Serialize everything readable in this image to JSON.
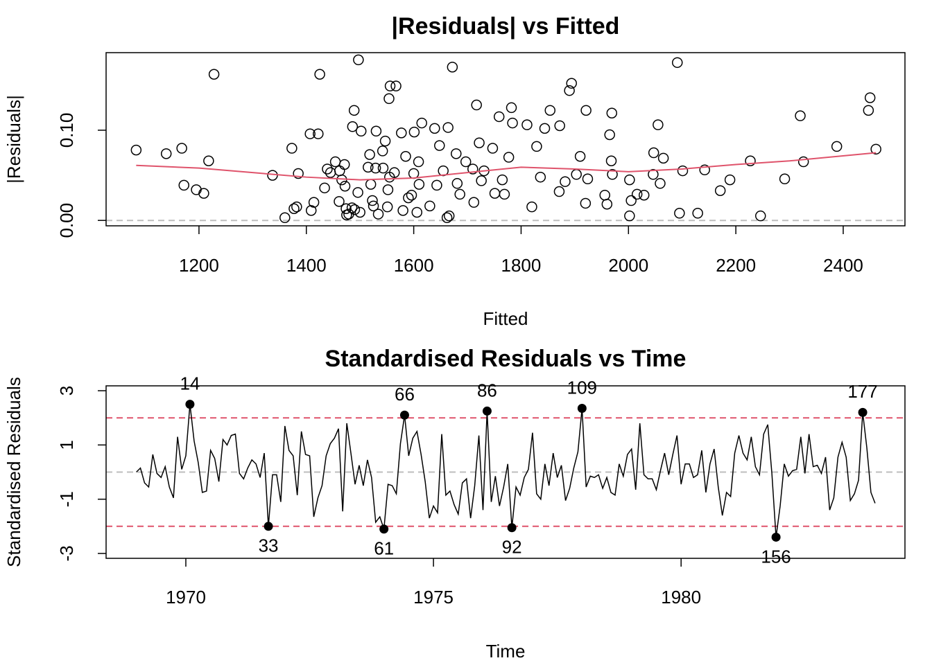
{
  "chart_data": [
    {
      "type": "scatter",
      "title": "|Residuals| vs Fitted",
      "x_label": "Fitted",
      "y_label": "|Residuals|",
      "xlim": [
        1027,
        2515
      ],
      "ylim": [
        -0.006,
        0.186
      ],
      "xticks": [
        1200,
        1400,
        1600,
        1800,
        2000,
        2200,
        2400
      ],
      "yticks": [
        {
          "value": 0,
          "label": "0.00"
        },
        {
          "value": 0.1,
          "label": "0.10"
        }
      ],
      "color": "#000000",
      "reference_lines": [
        {
          "value": 0,
          "color": "#bebebe"
        }
      ],
      "x": [
        1083,
        1139,
        1168,
        1218,
        1228,
        1172,
        1195,
        1209,
        1337,
        1360,
        1377,
        1382,
        1385,
        1373,
        1407,
        1422,
        1425,
        1409,
        1414,
        1434,
        1439,
        1445,
        1454,
        1461,
        1462,
        1466,
        1471,
        1472,
        1474,
        1475,
        1479,
        1485,
        1490,
        1489,
        1486,
        1497,
        1496,
        1500,
        1502,
        1515,
        1518,
        1520,
        1523,
        1525,
        1529,
        1530,
        1534,
        1542,
        1543,
        1547,
        1551,
        1552,
        1554,
        1555,
        1556,
        1564,
        1567,
        1577,
        1580,
        1585,
        1590,
        1596,
        1600,
        1601,
        1606,
        1610,
        1609,
        1615,
        1630,
        1639,
        1643,
        1648,
        1655,
        1662,
        1664,
        1666,
        1672,
        1679,
        1681,
        1686,
        1697,
        1710,
        1712,
        1717,
        1722,
        1726,
        1731,
        1747,
        1751,
        1759,
        1765,
        1769,
        1777,
        1782,
        1784,
        1811,
        1820,
        1829,
        1836,
        1844,
        1854,
        1871,
        1872,
        1882,
        1890,
        1894,
        1903,
        1910,
        1921,
        1924,
        1920,
        1956,
        1960,
        1965,
        1968,
        1969,
        1970,
        2002,
        2005,
        2002,
        2016,
        2029,
        2047,
        2046,
        2055,
        2059,
        2065,
        2091,
        2095,
        2101,
        2129,
        2142,
        2171,
        2189,
        2227,
        2246,
        2291,
        2320,
        2326,
        2388,
        2447,
        2450,
        2461
      ],
      "values": [
        0.078,
        0.074,
        0.08,
        0.066,
        0.162,
        0.039,
        0.034,
        0.03,
        0.05,
        0.003,
        0.013,
        0.015,
        0.052,
        0.08,
        0.096,
        0.096,
        0.162,
        0.011,
        0.02,
        0.036,
        0.057,
        0.053,
        0.065,
        0.021,
        0.055,
        0.045,
        0.062,
        0.038,
        0.013,
        0.006,
        0.007,
        0.014,
        0.012,
        0.122,
        0.104,
        0.178,
        0.031,
        0.009,
        0.099,
        0.059,
        0.073,
        0.04,
        0.022,
        0.016,
        0.058,
        0.099,
        0.007,
        0.077,
        0.058,
        0.088,
        0.015,
        0.034,
        0.135,
        0.048,
        0.149,
        0.053,
        0.149,
        0.097,
        0.011,
        0.071,
        0.025,
        0.028,
        0.052,
        0.098,
        0.009,
        0.04,
        0.065,
        0.108,
        0.016,
        0.102,
        0.039,
        0.083,
        0.055,
        0.003,
        0.103,
        0.005,
        0.17,
        0.074,
        0.041,
        0.029,
        0.065,
        0.057,
        0.02,
        0.128,
        0.086,
        0.044,
        0.055,
        0.08,
        0.03,
        0.115,
        0.045,
        0.029,
        0.07,
        0.125,
        0.108,
        0.106,
        0.015,
        0.082,
        0.048,
        0.102,
        0.122,
        0.032,
        0.105,
        0.043,
        0.144,
        0.152,
        0.051,
        0.071,
        0.122,
        0.046,
        0.019,
        0.028,
        0.018,
        0.095,
        0.066,
        0.119,
        0.051,
        0.045,
        0.022,
        0.005,
        0.029,
        0.028,
        0.075,
        0.051,
        0.106,
        0.041,
        0.069,
        0.175,
        0.008,
        0.055,
        0.008,
        0.056,
        0.033,
        0.045,
        0.066,
        0.005,
        0.046,
        0.116,
        0.065,
        0.082,
        0.122,
        0.136,
        0.079
      ],
      "fit_line": {
        "color": "#df536b",
        "x": [
          1083,
          1200,
          1300,
          1400,
          1500,
          1600,
          1700,
          1800,
          1900,
          2000,
          2100,
          2200,
          2300,
          2461
        ],
        "y": [
          0.061,
          0.058,
          0.053,
          0.048,
          0.045,
          0.047,
          0.053,
          0.059,
          0.057,
          0.054,
          0.057,
          0.062,
          0.066,
          0.075
        ]
      }
    },
    {
      "type": "line",
      "title": "Standardised Residuals vs Time",
      "x_label": "Time",
      "y_label": "Standardised Residuals",
      "xlim": [
        1968.39,
        1984.52
      ],
      "ylim": [
        -3.18,
        3.18
      ],
      "xticks": [
        1970,
        1975,
        1980
      ],
      "yticks": [
        -3,
        -1,
        1,
        3
      ],
      "color": "#000000",
      "reference_lines": [
        {
          "value": -2,
          "color": "#df536b"
        },
        {
          "value": 0,
          "color": "#bebebe"
        },
        {
          "value": 2,
          "color": "#df536b"
        }
      ],
      "x": [
        1969,
        1969.083,
        1969.167,
        1969.25,
        1969.333,
        1969.417,
        1969.5,
        1969.583,
        1969.667,
        1969.75,
        1969.833,
        1969.917,
        1970,
        1970.083,
        1970.167,
        1970.25,
        1970.333,
        1970.417,
        1970.5,
        1970.583,
        1970.667,
        1970.75,
        1970.833,
        1970.917,
        1971,
        1971.083,
        1971.167,
        1971.25,
        1971.333,
        1971.417,
        1971.5,
        1971.583,
        1971.667,
        1971.75,
        1971.833,
        1971.917,
        1972,
        1972.083,
        1972.167,
        1972.25,
        1972.333,
        1972.417,
        1972.5,
        1972.583,
        1972.667,
        1972.75,
        1972.833,
        1972.917,
        1973,
        1973.083,
        1973.167,
        1973.25,
        1973.333,
        1973.417,
        1973.5,
        1973.583,
        1973.667,
        1973.75,
        1973.833,
        1973.917,
        1974,
        1974.083,
        1974.167,
        1974.25,
        1974.333,
        1974.417,
        1974.5,
        1974.583,
        1974.667,
        1974.75,
        1974.833,
        1974.917,
        1975,
        1975.083,
        1975.167,
        1975.25,
        1975.333,
        1975.417,
        1975.5,
        1975.583,
        1975.667,
        1975.75,
        1975.833,
        1975.917,
        1976,
        1976.083,
        1976.167,
        1976.25,
        1976.333,
        1976.417,
        1976.5,
        1976.583,
        1976.667,
        1976.75,
        1976.833,
        1976.917,
        1977,
        1977.083,
        1977.167,
        1977.25,
        1977.333,
        1977.417,
        1977.5,
        1977.583,
        1977.667,
        1977.75,
        1977.833,
        1977.917,
        1978,
        1978.083,
        1978.167,
        1978.25,
        1978.333,
        1978.417,
        1978.5,
        1978.583,
        1978.667,
        1978.75,
        1978.833,
        1978.917,
        1979,
        1979.083,
        1979.167,
        1979.25,
        1979.333,
        1979.417,
        1979.5,
        1979.583,
        1979.667,
        1979.75,
        1979.833,
        1979.917,
        1980,
        1980.083,
        1980.167,
        1980.25,
        1980.333,
        1980.417,
        1980.5,
        1980.583,
        1980.667,
        1980.75,
        1980.833,
        1980.917,
        1981,
        1981.083,
        1981.167,
        1981.25,
        1981.333,
        1981.417,
        1981.5,
        1981.583,
        1981.667,
        1981.75,
        1981.833,
        1981.917,
        1982,
        1982.083,
        1982.167,
        1982.25,
        1982.333,
        1982.417,
        1982.5,
        1982.583,
        1982.667,
        1982.75,
        1982.833,
        1982.917,
        1983,
        1983.083,
        1983.167,
        1983.25,
        1983.333,
        1983.417,
        1983.5,
        1983.583,
        1983.667,
        1983.75,
        1983.833,
        1983.917
      ],
      "values": [
        0,
        0.15,
        -0.4,
        -0.55,
        0.65,
        -0.05,
        -0.2,
        0.2,
        -0.55,
        -0.95,
        1.3,
        0.1,
        0.6,
        2.5,
        1.15,
        0.35,
        -0.75,
        -0.7,
        0.8,
        0.5,
        -0.35,
        1.2,
        1.0,
        1.35,
        1.4,
        -0.05,
        -0.25,
        0.15,
        0.45,
        0.3,
        -0.2,
        0.7,
        -2.0,
        -0.1,
        -0.1,
        -1.1,
        1.7,
        0.8,
        0.6,
        -0.85,
        1.5,
        0.65,
        0.6,
        -1.65,
        -0.95,
        -0.5,
        0.6,
        1.05,
        1.25,
        1.6,
        -1.45,
        1.8,
        0.7,
        -0.45,
        0.25,
        -0.5,
        0.45,
        -0.2,
        -1.85,
        -1.65,
        -2.1,
        -0.45,
        -0.5,
        -0.8,
        1.05,
        2.1,
        0.6,
        1.25,
        1.5,
        0.65,
        -0.35,
        -1.7,
        -1.25,
        -1.5,
        1.4,
        -0.85,
        -0.7,
        -1.2,
        -1.55,
        -0.4,
        -0.25,
        -1.7,
        -0.5,
        1.35,
        -1.4,
        2.25,
        -1.1,
        -0.15,
        -1.25,
        -0.55,
        0.3,
        -2.05,
        -0.55,
        -0.85,
        -0.2,
        0.1,
        1.45,
        -0.8,
        -1.0,
        0.3,
        -0.5,
        0.7,
        -0.2,
        0.25,
        -1.05,
        -0.6,
        0.15,
        0.75,
        2.35,
        -0.55,
        -0.15,
        -0.2,
        -0.1,
        -0.6,
        -0.2,
        -0.75,
        -0.85,
        0.3,
        -0.15,
        0.65,
        0.85,
        -0.65,
        1.8,
        -0.1,
        -0.25,
        -0.25,
        -0.65,
        0.05,
        0.7,
        -0.1,
        0.65,
        1.35,
        -0.45,
        0.3,
        0.3,
        -0.2,
        -0.1,
        0.8,
        -0.75,
        0.3,
        0.85,
        -0.55,
        -1.6,
        -0.75,
        -0.9,
        0.7,
        1.35,
        0.7,
        0.45,
        1.3,
        0.2,
        -0.1,
        1.4,
        1.75,
        -0.05,
        -2.4,
        -1.25,
        0.3,
        -0.15,
        0.05,
        0.1,
        1.3,
        -0.05,
        1.4,
        0.2,
        0.25,
        -0.05,
        0.55,
        -1.4,
        -0.95,
        0.55,
        1.1,
        0.55,
        -1.05,
        -0.8,
        -0.3,
        2.2,
        0.9,
        -0.75,
        -1.15
      ],
      "labeled_points": [
        14,
        33,
        61,
        66,
        86,
        92,
        109,
        156,
        177
      ]
    }
  ]
}
